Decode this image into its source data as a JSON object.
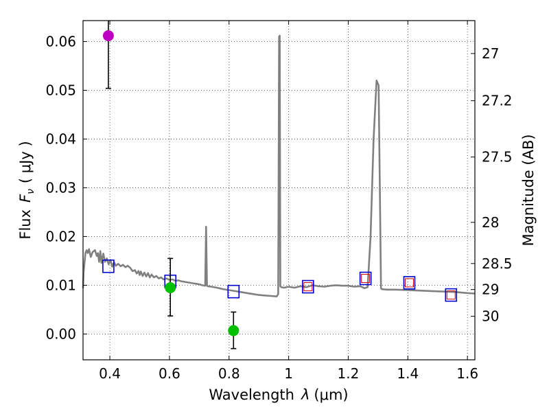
{
  "chart_data": {
    "type": "scatter",
    "xlabel_text": "Wavelength",
    "xlabel_symbol": "λ",
    "xlabel_unit": "(μm)",
    "ylabel_text": "Flux",
    "ylabel_symbol": "F",
    "ylabel_sub": "ν",
    "ylabel_unit": "( μJy )",
    "y2label": "Magnitude (AB)",
    "xlim": [
      0.31,
      1.625
    ],
    "ylim": [
      -0.0053,
      0.0643
    ],
    "x_ticks": [
      0.4,
      0.6,
      0.8,
      1.0,
      1.2,
      1.4,
      1.6
    ],
    "x_tick_labels": [
      "0.4",
      "0.6",
      "0.8",
      "1",
      "1.2",
      "1.4",
      "1.6"
    ],
    "y_ticks": [
      0.0,
      0.01,
      0.02,
      0.03,
      0.04,
      0.05,
      0.06
    ],
    "y_tick_labels": [
      "0.00",
      "0.01",
      "0.02",
      "0.03",
      "0.04",
      "0.05",
      "0.06"
    ],
    "mag_ticks": [
      27,
      27.2,
      27.5,
      28,
      28.5,
      29,
      30
    ],
    "mag_tick_labels": [
      "27",
      "27.2",
      "27.5",
      "28",
      "28.5",
      "29",
      "30"
    ],
    "grid": true,
    "model_sed": {
      "name": "model SED",
      "color": "#808080",
      "x": [
        0.31,
        0.312,
        0.318,
        0.322,
        0.326,
        0.33,
        0.336,
        0.342,
        0.35,
        0.356,
        0.36,
        0.364,
        0.368,
        0.372,
        0.378,
        0.384,
        0.39,
        0.396,
        0.402,
        0.408,
        0.414,
        0.42,
        0.428,
        0.436,
        0.444,
        0.452,
        0.46,
        0.468,
        0.476,
        0.484,
        0.49,
        0.496,
        0.5,
        0.504,
        0.51,
        0.516,
        0.522,
        0.528,
        0.534,
        0.54,
        0.548,
        0.556,
        0.564,
        0.572,
        0.58,
        0.59,
        0.6,
        0.61,
        0.62,
        0.63,
        0.64,
        0.65,
        0.66,
        0.67,
        0.68,
        0.69,
        0.7,
        0.71,
        0.72,
        0.723,
        0.726,
        0.729,
        0.74,
        0.76,
        0.78,
        0.8,
        0.82,
        0.84,
        0.86,
        0.88,
        0.9,
        0.92,
        0.94,
        0.96,
        0.965,
        0.968,
        0.97,
        0.972,
        0.975,
        0.985,
        1.0,
        1.02,
        1.04,
        1.06,
        1.08,
        1.1,
        1.12,
        1.14,
        1.16,
        1.18,
        1.2,
        1.22,
        1.24,
        1.255,
        1.265,
        1.275,
        1.285,
        1.295,
        1.302,
        1.306,
        1.31,
        1.312,
        1.33,
        1.36,
        1.4,
        1.44,
        1.48,
        1.52,
        1.56,
        1.6,
        1.625
      ],
      "y": [
        0.0094,
        0.0128,
        0.0166,
        0.0172,
        0.0166,
        0.0174,
        0.0158,
        0.0168,
        0.0172,
        0.016,
        0.0166,
        0.0148,
        0.017,
        0.0146,
        0.0165,
        0.0148,
        0.0155,
        0.0143,
        0.0152,
        0.0138,
        0.0147,
        0.014,
        0.0144,
        0.0139,
        0.0142,
        0.0137,
        0.014,
        0.0136,
        0.0129,
        0.0131,
        0.0124,
        0.0129,
        0.0121,
        0.0128,
        0.0119,
        0.0126,
        0.0118,
        0.0125,
        0.0116,
        0.0122,
        0.0116,
        0.0119,
        0.0114,
        0.0116,
        0.0112,
        0.0114,
        0.0111,
        0.0112,
        0.0109,
        0.011,
        0.0108,
        0.0107,
        0.0106,
        0.0105,
        0.0104,
        0.0103,
        0.0102,
        0.01,
        0.0099,
        0.022,
        0.0099,
        0.0098,
        0.0097,
        0.0095,
        0.0092,
        0.009,
        0.0088,
        0.0086,
        0.0084,
        0.0082,
        0.008,
        0.0079,
        0.0078,
        0.0077,
        0.0082,
        0.061,
        0.0612,
        0.0098,
        0.0096,
        0.0095,
        0.0097,
        0.0095,
        0.0098,
        0.0096,
        0.01,
        0.0098,
        0.0097,
        0.0099,
        0.01,
        0.0099,
        0.0099,
        0.0097,
        0.0098,
        0.0094,
        0.0096,
        0.02,
        0.04,
        0.052,
        0.051,
        0.03,
        0.0094,
        0.0092,
        0.0091,
        0.0091,
        0.009,
        0.0089,
        0.0088,
        0.0087,
        0.0086,
        0.0084,
        0.0083
      ]
    },
    "model_points": [
      {
        "x": 0.395,
        "y": 0.0139
      },
      {
        "x": 0.603,
        "y": 0.0108
      },
      {
        "x": 0.815,
        "y": 0.0087
      },
      {
        "x": 1.065,
        "y": 0.0097
      },
      {
        "x": 1.258,
        "y": 0.0114
      },
      {
        "x": 1.405,
        "y": 0.0105
      },
      {
        "x": 1.545,
        "y": 0.008
      }
    ],
    "model_point_colors": {
      "blue": "#0000cc",
      "red": "#cc0000"
    },
    "red_inner_from_index": 3,
    "observed_points": [
      {
        "x": 0.395,
        "y": 0.0612,
        "yerr_low": 0.0108,
        "yerr_high": 0.005,
        "color": "#c000c0"
      },
      {
        "x": 0.603,
        "y": 0.0095,
        "yerr_low": 0.0058,
        "yerr_high": 0.006,
        "color": "#00c000"
      },
      {
        "x": 0.815,
        "y": 0.0007,
        "yerr_low": 0.0037,
        "yerr_high": 0.0038,
        "color": "#00c000"
      }
    ]
  }
}
